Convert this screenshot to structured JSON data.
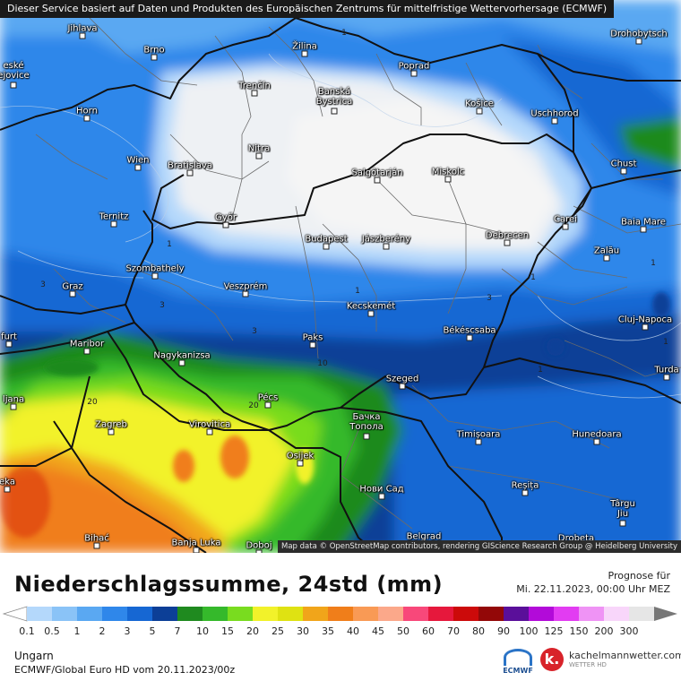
{
  "banner": "Dieser Service basiert auf Daten und Produkten des Europäischen Zentrums für mittelfristige Wettervorhersage (ECMWF)",
  "map_credit": "Map data © OpenStreetMap contributors, rendering GIScience Research Group @ Heidelberg University",
  "cities": [
    {
      "name": "Jihlava"
    },
    {
      "name": "Brno"
    },
    {
      "name": "Žilina"
    },
    {
      "name": "Poprad"
    },
    {
      "name": "Drohobytsch"
    },
    {
      "name": "eské\nejovice"
    },
    {
      "name": "Trenčín"
    },
    {
      "name": "Banská\nBystrica"
    },
    {
      "name": "Košice"
    },
    {
      "name": "Uschhorod"
    },
    {
      "name": "Horn"
    },
    {
      "name": "Nitra"
    },
    {
      "name": "Wien"
    },
    {
      "name": "Bratislava"
    },
    {
      "name": "Salgótarján"
    },
    {
      "name": "Miskolc"
    },
    {
      "name": "Chust"
    },
    {
      "name": "Ternitz"
    },
    {
      "name": "Győr"
    },
    {
      "name": "Budapest"
    },
    {
      "name": "Jászberény"
    },
    {
      "name": "Debrecen"
    },
    {
      "name": "Carei"
    },
    {
      "name": "Baia Mare"
    },
    {
      "name": "Szombathely"
    },
    {
      "name": "Zalău"
    },
    {
      "name": "Graz"
    },
    {
      "name": "Veszprém"
    },
    {
      "name": "Kecskemét"
    },
    {
      "name": "Cluj-Napoca"
    },
    {
      "name": "furt"
    },
    {
      "name": "Maribor"
    },
    {
      "name": "Paks"
    },
    {
      "name": "Békéscsaba"
    },
    {
      "name": "Nagykanizsa"
    },
    {
      "name": "Szeged"
    },
    {
      "name": "Turda"
    },
    {
      "name": "ljana"
    },
    {
      "name": "Pécs"
    },
    {
      "name": "Zagreb"
    },
    {
      "name": "Virovitica"
    },
    {
      "name": "Бачка\nТопола"
    },
    {
      "name": "Timișoara"
    },
    {
      "name": "Hunedoara"
    },
    {
      "name": "Osijek"
    },
    {
      "name": "eka"
    },
    {
      "name": "Нови Сад"
    },
    {
      "name": "Reșița"
    },
    {
      "name": "Târgu\nJiu"
    },
    {
      "name": "Bihać"
    },
    {
      "name": "Banja Luka"
    },
    {
      "name": "Doboj"
    },
    {
      "name": "Belgrad"
    },
    {
      "name": "Drobeta"
    }
  ],
  "contour_labels": [
    "1",
    "1",
    "1",
    "3",
    "3",
    "3",
    "3",
    "1",
    "1",
    "10",
    "20",
    "20",
    "1",
    "1"
  ],
  "footer": {
    "title": "Niederschlagssumme, 24std (mm)",
    "forecast_label": "Prognose für",
    "forecast_time": "Mi. 22.11.2023, 00:00 Uhr MEZ",
    "region": "Ungarn",
    "model": "ECMWF/Global Euro HD vom  20.11.2023/00z",
    "ecmwf_logo_text": "ECMWF",
    "brand_name": "kachelmannwetter.com",
    "brand_sub": "WETTER HD",
    "brand_icon": "k."
  },
  "legend": {
    "ticks": [
      "0.1",
      "0.5",
      "1",
      "2",
      "3",
      "5",
      "7",
      "10",
      "15",
      "20",
      "25",
      "30",
      "35",
      "40",
      "45",
      "50",
      "60",
      "70",
      "80",
      "90",
      "100",
      "125",
      "150",
      "200",
      "300"
    ],
    "colors": [
      "#b4d8fb",
      "#8ac3f7",
      "#5aa8f2",
      "#2f87ea",
      "#1667d3",
      "#0c3f97",
      "#1f8a1f",
      "#35b92b",
      "#79dc1f",
      "#f2f22a",
      "#dfe212",
      "#f1a51a",
      "#f07e1a",
      "#f99a55",
      "#fba88a",
      "#f8487a",
      "#e6183c",
      "#cc0a0a",
      "#930808",
      "#5a0f9a",
      "#b20ad9",
      "#e23cf2",
      "#ef93f5",
      "#f8d6fa",
      "#e6e6e6"
    ]
  }
}
